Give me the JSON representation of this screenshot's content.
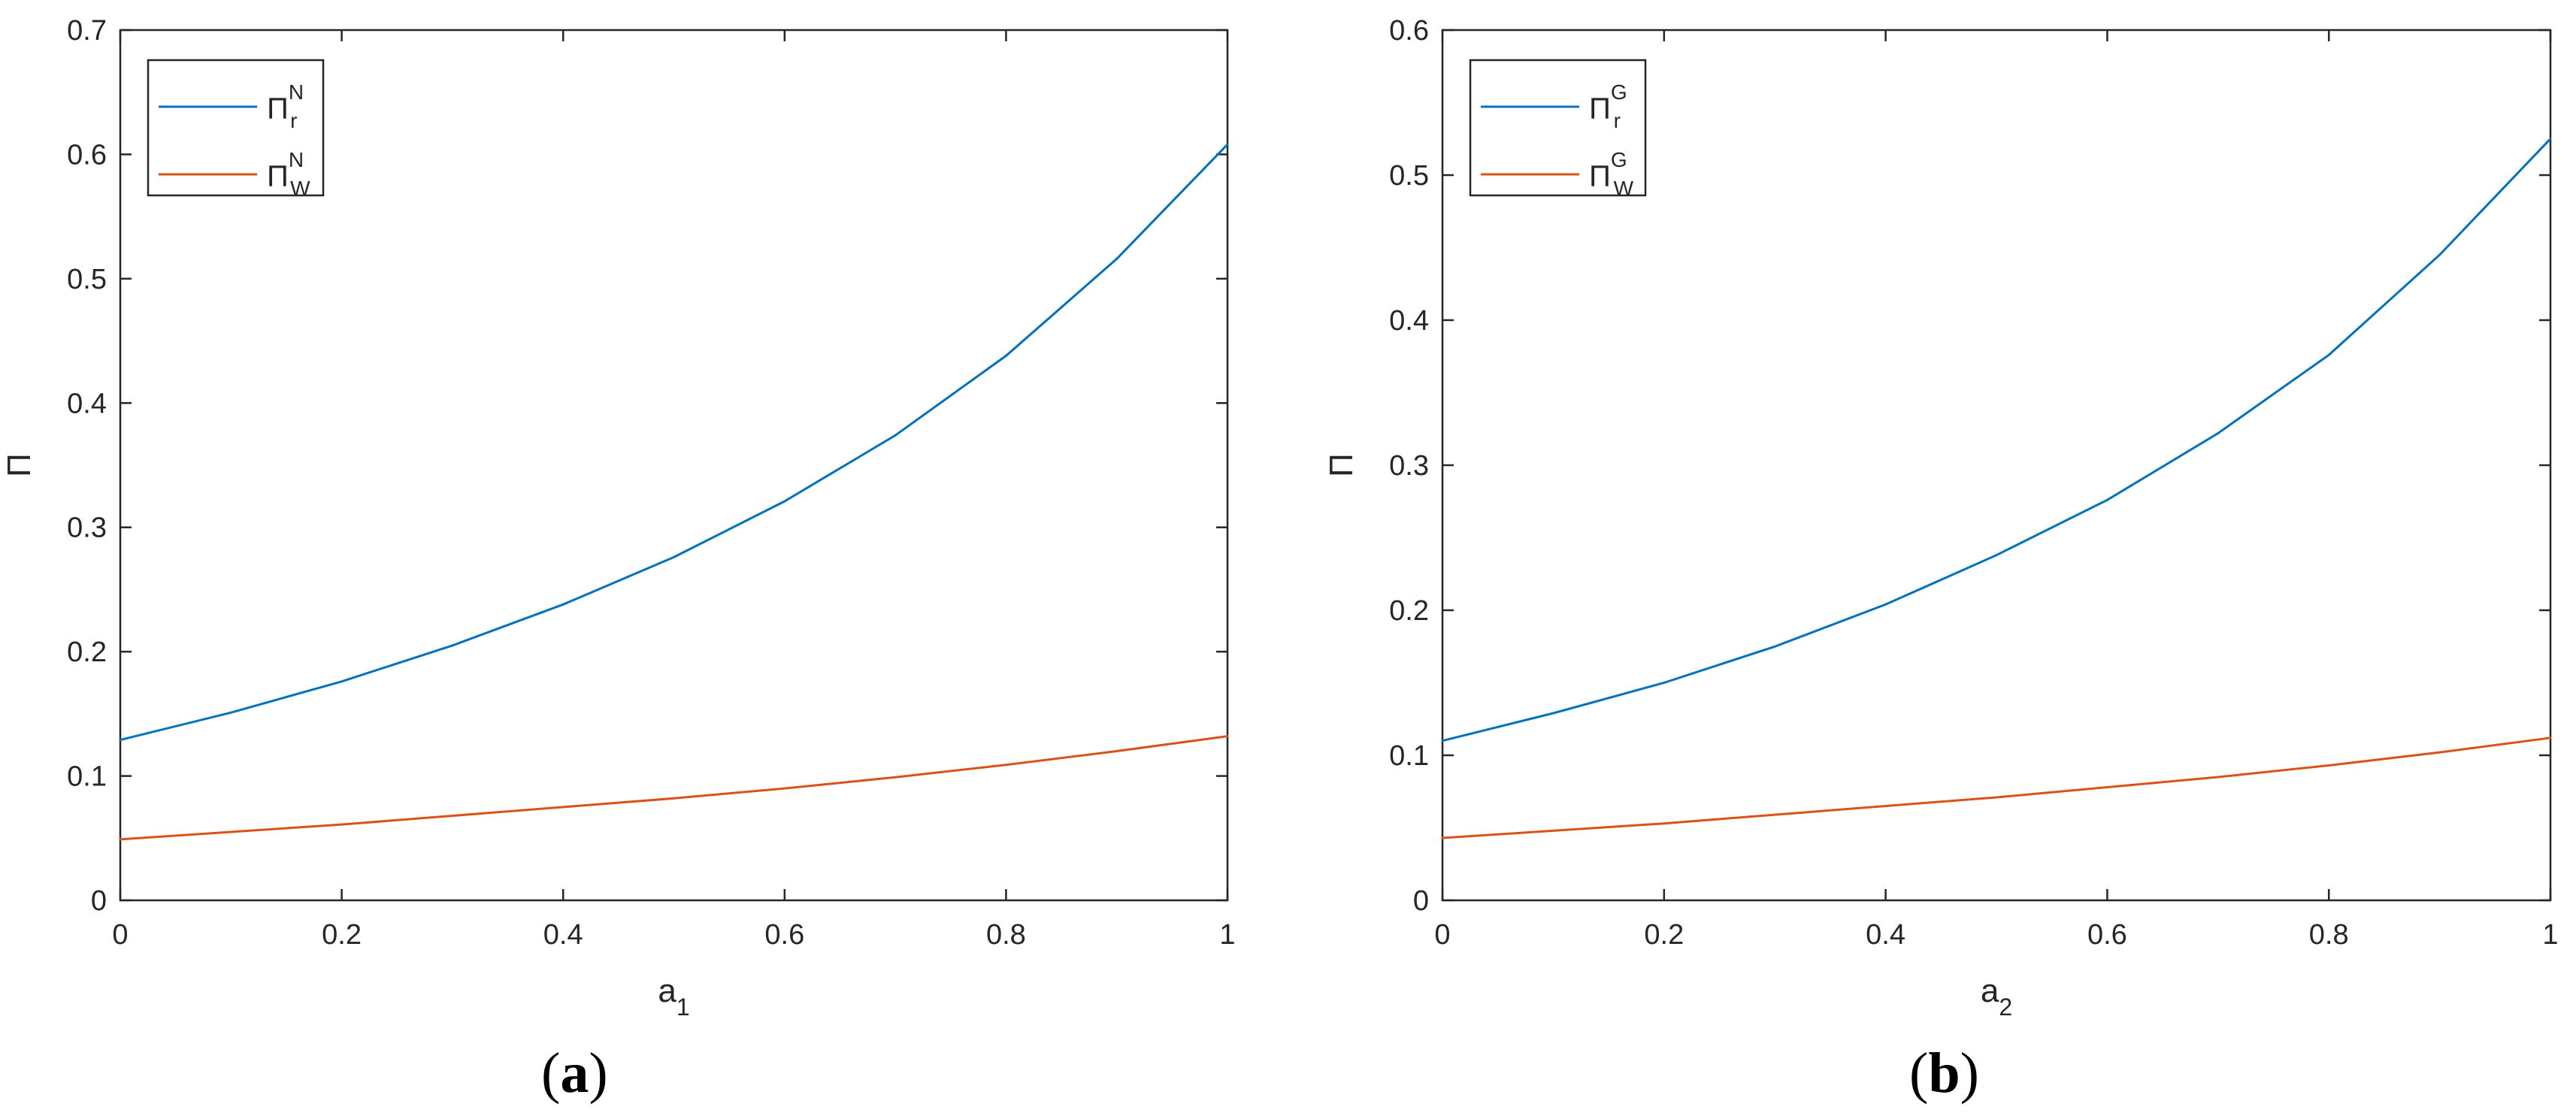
{
  "chart_data": [
    {
      "type": "line",
      "panel_label": "a",
      "xlabel": {
        "base": "a",
        "sub": "1"
      },
      "ylabel": "Π",
      "xlim": [
        0,
        1
      ],
      "ylim": [
        0,
        0.7
      ],
      "xticks": [
        0,
        0.2,
        0.4,
        0.6,
        0.8,
        1
      ],
      "xtick_labels": [
        "0",
        "0.2",
        "0.4",
        "0.6",
        "0.8",
        "1"
      ],
      "yticks": [
        0,
        0.1,
        0.2,
        0.3,
        0.4,
        0.5,
        0.6,
        0.7
      ],
      "ytick_labels": [
        "0",
        "0.1",
        "0.2",
        "0.3",
        "0.4",
        "0.5",
        "0.6",
        "0.7"
      ],
      "grid": false,
      "legend_position": "top-left",
      "x": [
        0,
        0.1,
        0.2,
        0.3,
        0.4,
        0.5,
        0.6,
        0.7,
        0.8,
        0.9,
        1.0
      ],
      "series": [
        {
          "name": {
            "base": "Π",
            "sup": "N",
            "sub": "r"
          },
          "color": "#0072BD",
          "values": [
            0.129,
            0.151,
            0.176,
            0.205,
            0.238,
            0.276,
            0.321,
            0.374,
            0.438,
            0.516,
            0.608
          ]
        },
        {
          "name": {
            "base": "Π",
            "sup": "N",
            "sub": "W"
          },
          "color": "#D95319",
          "values": [
            0.049,
            0.055,
            0.061,
            0.068,
            0.075,
            0.082,
            0.09,
            0.099,
            0.109,
            0.12,
            0.132
          ]
        }
      ]
    },
    {
      "type": "line",
      "panel_label": "b",
      "xlabel": {
        "base": "a",
        "sub": "2"
      },
      "ylabel": "Π",
      "xlim": [
        0,
        1
      ],
      "ylim": [
        0,
        0.6
      ],
      "xticks": [
        0,
        0.2,
        0.4,
        0.6,
        0.8,
        1
      ],
      "xtick_labels": [
        "0",
        "0.2",
        "0.4",
        "0.6",
        "0.8",
        "1"
      ],
      "yticks": [
        0,
        0.1,
        0.2,
        0.3,
        0.4,
        0.5,
        0.6
      ],
      "ytick_labels": [
        "0",
        "0.1",
        "0.2",
        "0.3",
        "0.4",
        "0.5",
        "0.6"
      ],
      "grid": false,
      "legend_position": "top-left",
      "x": [
        0,
        0.1,
        0.2,
        0.3,
        0.4,
        0.5,
        0.6,
        0.7,
        0.8,
        0.9,
        1.0
      ],
      "series": [
        {
          "name": {
            "base": "Π",
            "sup": "G",
            "sub": "r"
          },
          "color": "#0072BD",
          "values": [
            0.11,
            0.129,
            0.15,
            0.175,
            0.204,
            0.238,
            0.276,
            0.322,
            0.376,
            0.445,
            0.525
          ]
        },
        {
          "name": {
            "base": "Π",
            "sup": "G",
            "sub": "W"
          },
          "color": "#D95319",
          "values": [
            0.043,
            0.048,
            0.053,
            0.059,
            0.065,
            0.071,
            0.078,
            0.085,
            0.093,
            0.102,
            0.112
          ]
        }
      ]
    }
  ]
}
